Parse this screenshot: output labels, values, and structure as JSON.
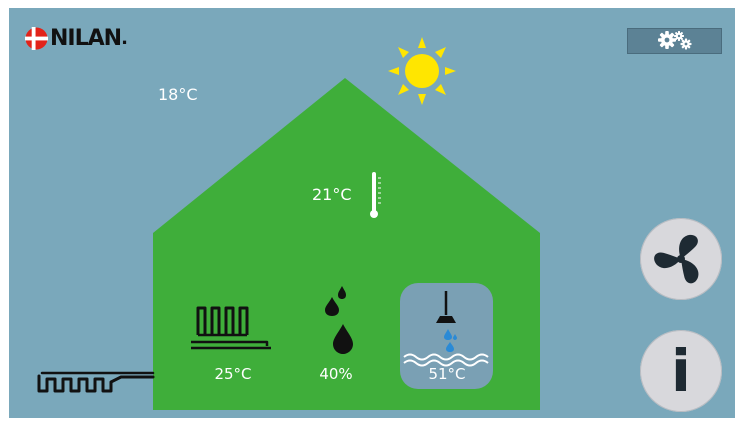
{
  "brand": {
    "name": "NILAN",
    "trademark": "."
  },
  "outdoor": {
    "temperature": "18°C",
    "weather_icon": "sun-icon"
  },
  "indoor": {
    "temperature": "21°C",
    "icon": "thermometer-icon"
  },
  "tiles": [
    {
      "name": "heating",
      "icon": "radiator-icon",
      "value": "25°C"
    },
    {
      "name": "humidity",
      "icon": "water-drops-icon",
      "value": "40%"
    },
    {
      "name": "hot-water",
      "icon": "shower-icon",
      "value": "51°C",
      "selected": true
    }
  ],
  "buttons": {
    "settings_icon": "gears-icon",
    "fan_icon": "fan-icon",
    "info_label": "i"
  },
  "colors": {
    "background": "#7aa8bb",
    "house": "#3fae3a",
    "sun": "#ffe600",
    "water": "#2a8ad6",
    "dark": "#1e2a33"
  }
}
